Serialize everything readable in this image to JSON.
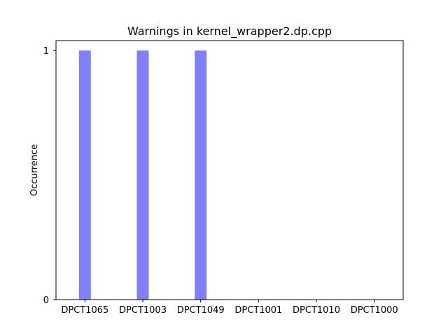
{
  "chart_data": {
    "type": "bar",
    "title": "Warnings in kernel_wrapper2.dp.cpp",
    "xlabel": "",
    "ylabel": "Occurrence",
    "categories": [
      "DPCT1065",
      "DPCT1003",
      "DPCT1049",
      "DPCT1001",
      "DPCT1010",
      "DPCT1000"
    ],
    "values": [
      1,
      1,
      1,
      0,
      0,
      0
    ],
    "ylim": [
      0,
      1.04
    ],
    "yticks": [
      0,
      1
    ],
    "grid": false,
    "bar_color": "#8080ff"
  }
}
